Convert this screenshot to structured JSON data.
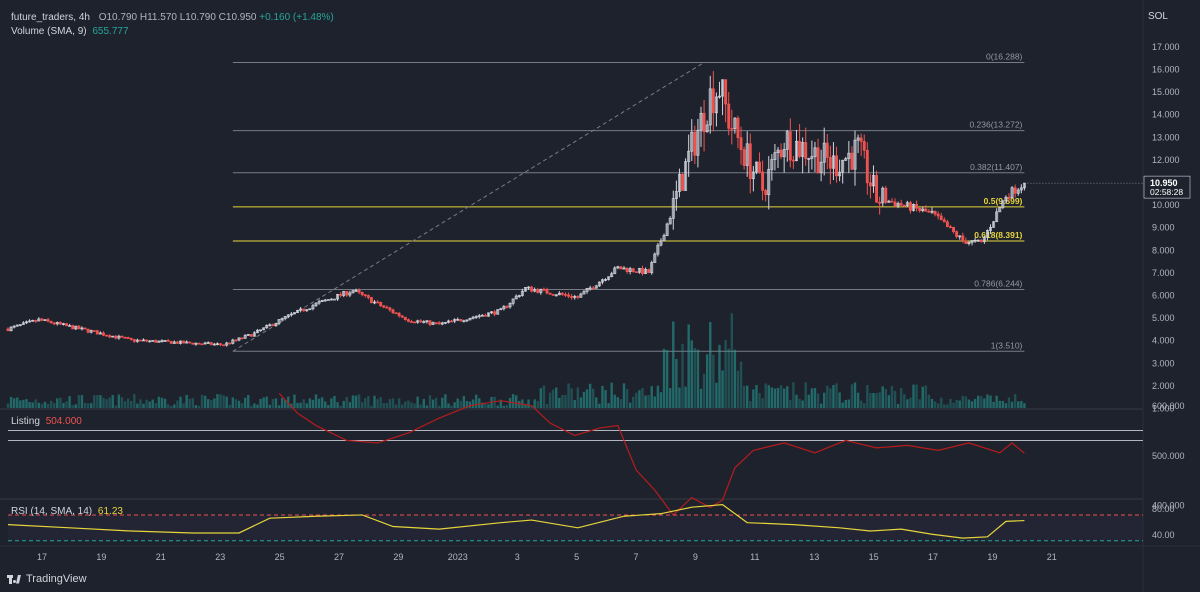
{
  "header": {
    "symbol": "future_traders, 4h",
    "ohlc": {
      "o": "O10.790",
      "h": "H11.570",
      "l": "L10.790",
      "c": "C10.950",
      "change": "+0.160 (+1.48%)"
    },
    "volume_label": "Volume (SMA, 9)",
    "volume_value": "655.777",
    "currency": "SOL"
  },
  "listing_panel": {
    "label": "Listing",
    "value": "504.000",
    "color": "#b71c1c"
  },
  "rsi_panel": {
    "label": "RSI (14, SMA, 14)",
    "value": "61.23",
    "color": "#e6d53a"
  },
  "price_tag": {
    "price": "10.950",
    "countdown": "02:58:28"
  },
  "footer": {
    "brand": "TradingView"
  },
  "colors": {
    "up": "#26a69a",
    "down": "#ef5350",
    "fib_yellow": "#e6d53a",
    "background": "#1e222d"
  },
  "chart_data": [
    {
      "type": "candlestick",
      "name": "future_traders 4h",
      "y_axis_ticks": [
        1.0,
        2.0,
        3.0,
        4.0,
        5.0,
        6.0,
        7.0,
        8.0,
        9.0,
        10.0,
        11.0,
        12.0,
        13.0,
        14.0,
        15.0,
        16.0,
        17.0
      ],
      "y_range": [
        1.0,
        17.5
      ],
      "x_axis_labels": [
        "17",
        "19",
        "21",
        "23",
        "25",
        "27",
        "29",
        "2023",
        "3",
        "5",
        "7",
        "9",
        "11",
        "13",
        "15",
        "17",
        "19",
        "21"
      ],
      "close_path": [
        {
          "bar": 0,
          "close": 4.5
        },
        {
          "bar": 10,
          "close": 4.9
        },
        {
          "bar": 20,
          "close": 4.6
        },
        {
          "bar": 40,
          "close": 4.0
        },
        {
          "bar": 70,
          "close": 3.8
        },
        {
          "bar": 80,
          "close": 4.3
        },
        {
          "bar": 90,
          "close": 5.0
        },
        {
          "bar": 100,
          "close": 5.6
        },
        {
          "bar": 112,
          "close": 6.2
        },
        {
          "bar": 120,
          "close": 5.6
        },
        {
          "bar": 130,
          "close": 4.9
        },
        {
          "bar": 140,
          "close": 4.7
        },
        {
          "bar": 160,
          "close": 5.3
        },
        {
          "bar": 168,
          "close": 6.3
        },
        {
          "bar": 185,
          "close": 5.9
        },
        {
          "bar": 198,
          "close": 7.2
        },
        {
          "bar": 208,
          "close": 7.0
        },
        {
          "bar": 215,
          "close": 9.5
        },
        {
          "bar": 222,
          "close": 12.5
        },
        {
          "bar": 228,
          "close": 14.8
        },
        {
          "bar": 231,
          "close": 15.2
        },
        {
          "bar": 234,
          "close": 13.8
        },
        {
          "bar": 238,
          "close": 12.6
        },
        {
          "bar": 245,
          "close": 10.7
        },
        {
          "bar": 252,
          "close": 12.9
        },
        {
          "bar": 260,
          "close": 12.4
        },
        {
          "bar": 268,
          "close": 11.8
        },
        {
          "bar": 276,
          "close": 12.4
        },
        {
          "bar": 282,
          "close": 10.3
        },
        {
          "bar": 290,
          "close": 10.0
        },
        {
          "bar": 300,
          "close": 9.6
        },
        {
          "bar": 310,
          "close": 8.4
        },
        {
          "bar": 316,
          "close": 8.3
        },
        {
          "bar": 324,
          "close": 10.4
        },
        {
          "bar": 330,
          "close": 10.95
        }
      ],
      "fibonacci": [
        {
          "level": "0",
          "price": 16.288,
          "label": "0(16.288)"
        },
        {
          "level": "0.236",
          "price": 13.272,
          "label": "0.236(13.272)"
        },
        {
          "level": "0.382",
          "price": 11.407,
          "label": "0.382(11.407)"
        },
        {
          "level": "0.5",
          "price": 9.899,
          "label": "0.5(9.899)"
        },
        {
          "level": "0.618",
          "price": 8.391,
          "label": "0.618(8.391)"
        },
        {
          "level": "0.786",
          "price": 6.244,
          "label": "0.786(6.244)"
        },
        {
          "level": "1",
          "price": 3.51,
          "label": "1(3.510)"
        }
      ],
      "fib_anchor": {
        "start_price": 3.51,
        "end_price": 16.288
      }
    },
    {
      "type": "line",
      "name": "Listing",
      "y_axis_ticks": [
        400.0,
        500.0,
        600.0
      ],
      "y_range": [
        380,
        625
      ],
      "reference_lines": [
        550,
        530
      ],
      "path": [
        {
          "bar": 88,
          "value": 625
        },
        {
          "bar": 94,
          "value": 585
        },
        {
          "bar": 100,
          "value": 560
        },
        {
          "bar": 110,
          "value": 530
        },
        {
          "bar": 120,
          "value": 525
        },
        {
          "bar": 130,
          "value": 545
        },
        {
          "bar": 140,
          "value": 575
        },
        {
          "bar": 150,
          "value": 600
        },
        {
          "bar": 160,
          "value": 610
        },
        {
          "bar": 170,
          "value": 600
        },
        {
          "bar": 176,
          "value": 565
        },
        {
          "bar": 184,
          "value": 540
        },
        {
          "bar": 192,
          "value": 555
        },
        {
          "bar": 198,
          "value": 560
        },
        {
          "bar": 204,
          "value": 470
        },
        {
          "bar": 210,
          "value": 430
        },
        {
          "bar": 216,
          "value": 380
        },
        {
          "bar": 222,
          "value": 415
        },
        {
          "bar": 228,
          "value": 395
        },
        {
          "bar": 232,
          "value": 410
        },
        {
          "bar": 236,
          "value": 475
        },
        {
          "bar": 242,
          "value": 510
        },
        {
          "bar": 252,
          "value": 525
        },
        {
          "bar": 262,
          "value": 505
        },
        {
          "bar": 272,
          "value": 530
        },
        {
          "bar": 282,
          "value": 515
        },
        {
          "bar": 292,
          "value": 520
        },
        {
          "bar": 302,
          "value": 510
        },
        {
          "bar": 312,
          "value": 525
        },
        {
          "bar": 322,
          "value": 505
        },
        {
          "bar": 326,
          "value": 525
        },
        {
          "bar": 330,
          "value": 504
        }
      ]
    },
    {
      "type": "line",
      "name": "RSI (14, SMA, 14)",
      "y_axis_ticks": [
        40.0,
        80.0
      ],
      "y_range": [
        25,
        95
      ],
      "reference_lines": [
        70,
        30
      ],
      "path": [
        {
          "bar": 0,
          "value": 55
        },
        {
          "bar": 20,
          "value": 50
        },
        {
          "bar": 40,
          "value": 45
        },
        {
          "bar": 60,
          "value": 42
        },
        {
          "bar": 75,
          "value": 42
        },
        {
          "bar": 85,
          "value": 65
        },
        {
          "bar": 100,
          "value": 68
        },
        {
          "bar": 115,
          "value": 70
        },
        {
          "bar": 125,
          "value": 52
        },
        {
          "bar": 140,
          "value": 48
        },
        {
          "bar": 160,
          "value": 58
        },
        {
          "bar": 170,
          "value": 62
        },
        {
          "bar": 185,
          "value": 50
        },
        {
          "bar": 200,
          "value": 68
        },
        {
          "bar": 212,
          "value": 72
        },
        {
          "bar": 222,
          "value": 82
        },
        {
          "bar": 232,
          "value": 86
        },
        {
          "bar": 240,
          "value": 58
        },
        {
          "bar": 255,
          "value": 55
        },
        {
          "bar": 270,
          "value": 50
        },
        {
          "bar": 280,
          "value": 45
        },
        {
          "bar": 290,
          "value": 48
        },
        {
          "bar": 300,
          "value": 40
        },
        {
          "bar": 310,
          "value": 34
        },
        {
          "bar": 318,
          "value": 36
        },
        {
          "bar": 324,
          "value": 60
        },
        {
          "bar": 330,
          "value": 61.23
        }
      ]
    }
  ]
}
